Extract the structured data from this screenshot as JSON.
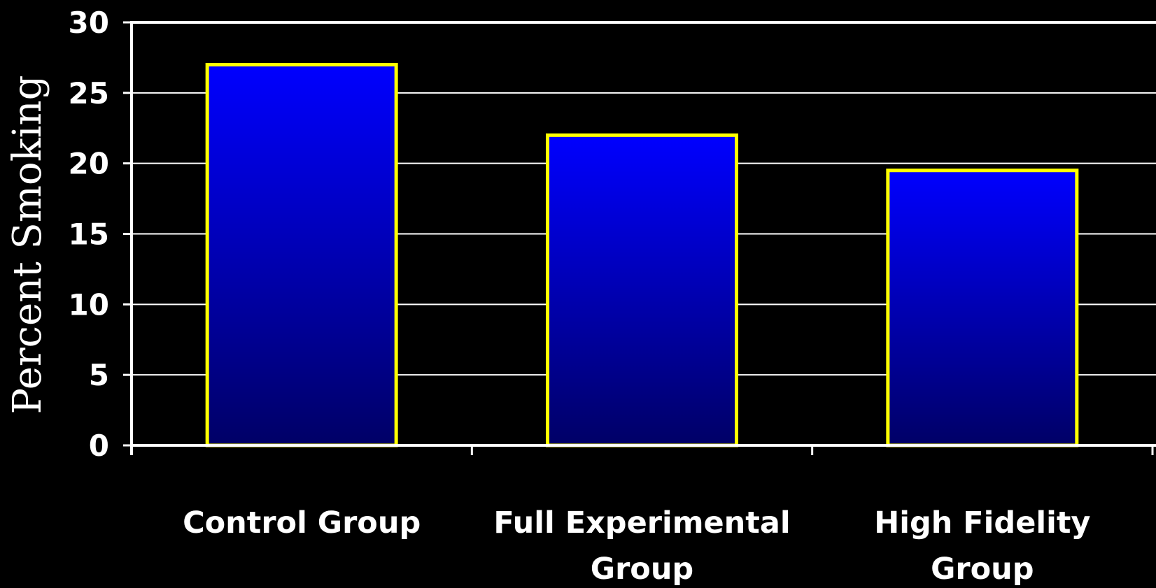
{
  "chart_data": {
    "type": "bar",
    "title": "",
    "xlabel": "",
    "ylabel": "Percent Smoking",
    "categories": [
      [
        "Control Group"
      ],
      [
        "Full Experimental",
        "Group"
      ],
      [
        "High Fidelity",
        "Group"
      ]
    ],
    "values": [
      27,
      22,
      19.5
    ],
    "ylim": [
      0,
      30
    ],
    "yticks": [
      0,
      5,
      10,
      15,
      20,
      25,
      30
    ],
    "grid": true,
    "legend": "none",
    "colors": {
      "background": "#000000",
      "bar_top": "#0000ff",
      "bar_bottom": "#000066",
      "bar_border": "#ffff00",
      "axis": "#ffffff",
      "grid": "#ffffff",
      "text": "#ffffff"
    }
  }
}
